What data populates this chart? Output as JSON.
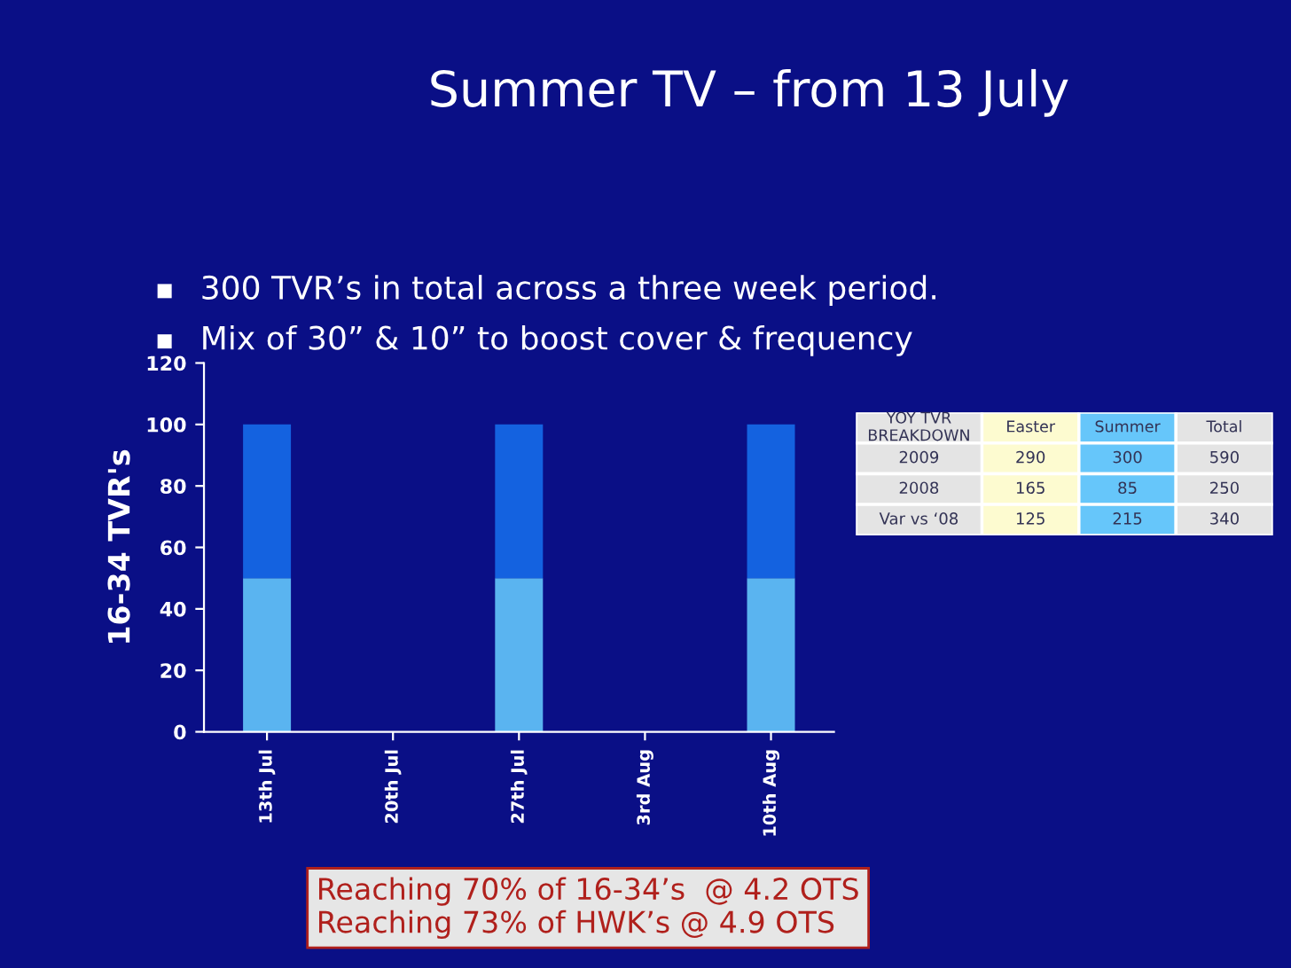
{
  "chart_data": [
    {
      "type": "bar",
      "title": "Summer TV – from 13 July",
      "ylabel": "16-34 TVR's",
      "stacked": true,
      "categories": [
        "13th Jul",
        "20th Jul",
        "27th Jul",
        "3rd Aug",
        "10th Aug"
      ],
      "series": [
        {
          "color": "#5ab4f0",
          "values": [
            50,
            0,
            50,
            0,
            50
          ]
        },
        {
          "color": "#1462e0",
          "values": [
            50,
            0,
            50,
            0,
            50
          ]
        }
      ],
      "ylim": [
        0,
        120
      ],
      "yticks": [
        0,
        20,
        40,
        60,
        80,
        100,
        120
      ],
      "grid": false,
      "legend": false,
      "annotations": [
        "300 TVR’s in total across a three week period.",
        "Mix of 30” & 10” to boost cover & frequency",
        "Reaching 70% of 16-34’s  @ 4.2 OTS\nReaching 73% of HWK’s @ 4.9 OTS"
      ]
    },
    {
      "type": "other",
      "title": "YOY TVR\nBREAKDOWN",
      "categories": [
        "Easter",
        "Summer",
        "Total"
      ],
      "y_categories": [
        "2009",
        "2008",
        "Var vs ‘08"
      ],
      "cell_labels": [
        [
          "290",
          "300",
          "590"
        ],
        [
          "165",
          "85",
          "250"
        ],
        [
          "125",
          "215",
          "340"
        ]
      ],
      "colors": [
        "#fdfbd0",
        "#66c6fa",
        "#e4e4e4"
      ]
    }
  ]
}
